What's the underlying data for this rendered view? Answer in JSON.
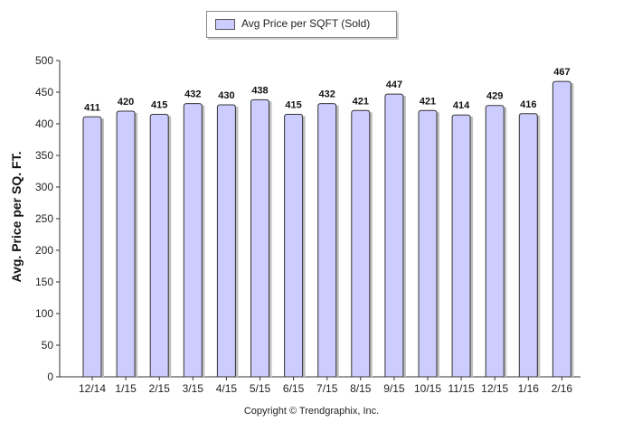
{
  "legend": {
    "label": "Avg Price per SQFT (Sold)"
  },
  "copyright": "Copyright © Trendgraphix, Inc.",
  "colors": {
    "bar_fill": "#ccccff",
    "bar_stroke": "#333333",
    "bar_shadow": "#bfbfbf"
  },
  "chart_data": {
    "type": "bar",
    "title": "",
    "xlabel": "",
    "ylabel": "Avg. Price per SQ. FT.",
    "categories": [
      "12/14",
      "1/15",
      "2/15",
      "3/15",
      "4/15",
      "5/15",
      "6/15",
      "7/15",
      "8/15",
      "9/15",
      "10/15",
      "11/15",
      "12/15",
      "1/16",
      "2/16"
    ],
    "series": [
      {
        "name": "Avg Price per SQFT (Sold)",
        "values": [
          411,
          420,
          415,
          432,
          430,
          438,
          415,
          432,
          421,
          447,
          421,
          414,
          429,
          416,
          467
        ]
      }
    ],
    "ylim": [
      0,
      500
    ],
    "yticks": [
      0,
      50,
      100,
      150,
      200,
      250,
      300,
      350,
      400,
      450,
      500
    ],
    "grid": false,
    "legend_position": "top-center"
  }
}
